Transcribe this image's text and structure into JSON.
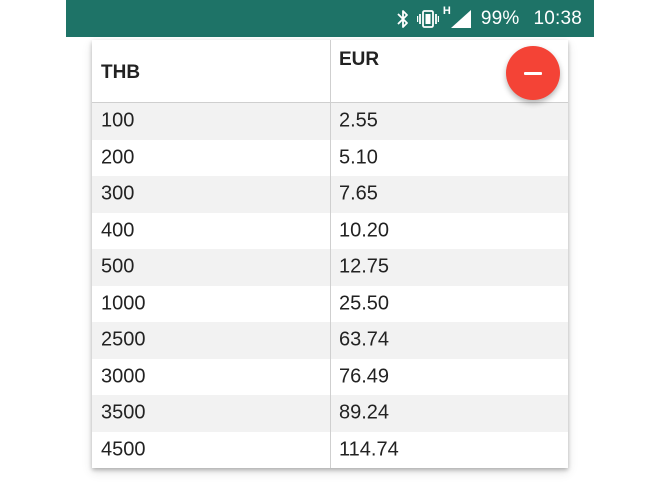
{
  "status_bar": {
    "background": "#1e7367",
    "icons": [
      "bluetooth-icon",
      "vibrate-icon",
      "signal-h-icon"
    ],
    "network_label": "H",
    "battery": "99%",
    "time": "10:38"
  },
  "table": {
    "headers": {
      "thb": "THB",
      "eur": "EUR"
    },
    "rows": [
      {
        "thb": "100",
        "eur": "2.55"
      },
      {
        "thb": "200",
        "eur": "5.10"
      },
      {
        "thb": "300",
        "eur": "7.65"
      },
      {
        "thb": "400",
        "eur": "10.20"
      },
      {
        "thb": "500",
        "eur": "12.75"
      },
      {
        "thb": "1000",
        "eur": "25.50"
      },
      {
        "thb": "2500",
        "eur": "63.74"
      },
      {
        "thb": "3000",
        "eur": "76.49"
      },
      {
        "thb": "3500",
        "eur": "89.24"
      },
      {
        "thb": "4500",
        "eur": "114.74"
      }
    ],
    "stripe_color": "#f2f2f2"
  },
  "fab": {
    "icon": "minus-icon",
    "color": "#f44336"
  }
}
